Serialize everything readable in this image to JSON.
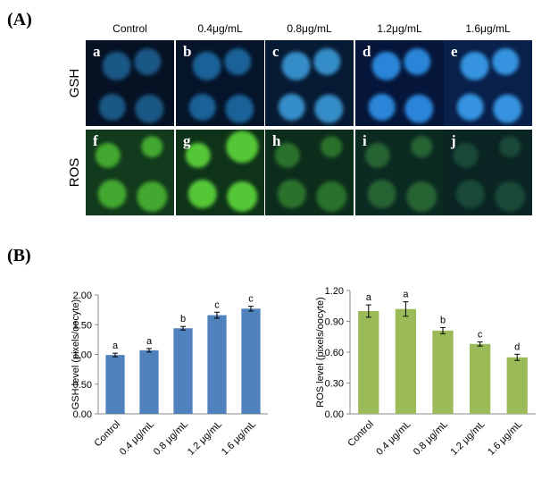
{
  "panel_a": {
    "label": "(A)",
    "columns": [
      "Control",
      "0.4μg/mL",
      "0.8μg/mL",
      "1.2μg/mL",
      "1.6μg/mL"
    ],
    "rows": [
      {
        "label": "GSH",
        "letters": [
          "a",
          "b",
          "c",
          "d",
          "e"
        ]
      },
      {
        "label": "ROS",
        "letters": [
          "f",
          "g",
          "h",
          "i",
          "j"
        ]
      }
    ]
  },
  "panel_b_label": "(B)",
  "chart_data": [
    {
      "type": "bar",
      "y_label": "GSH level (pixels/oocyte)",
      "categories": [
        "Control",
        "0.4 μg/mL",
        "0.8 μg/mL",
        "1.2 μg/mL",
        "1.6 μg/mL"
      ],
      "values": [
        0.99,
        1.07,
        1.44,
        1.66,
        1.77
      ],
      "errors": [
        0.03,
        0.03,
        0.03,
        0.05,
        0.04
      ],
      "annotations": [
        "a",
        "a",
        "b",
        "c",
        "c"
      ],
      "color": "#4f81bd",
      "ylim": [
        0,
        2
      ],
      "yticks": [
        {
          "value": 0,
          "label": "0.00"
        },
        {
          "value": 0.5,
          "label": "0.50"
        },
        {
          "value": 1,
          "label": "1.00"
        },
        {
          "value": 1.5,
          "label": "1.50"
        },
        {
          "value": 2,
          "label": "2.00"
        }
      ]
    },
    {
      "type": "bar",
      "y_label": "ROS level (pixels/oocyte)",
      "categories": [
        "Control",
        "0.4 μg/mL",
        "0.8 μg/mL",
        "1.2 μg/mL",
        "1.6 μg/mL"
      ],
      "values": [
        1.0,
        1.02,
        0.81,
        0.68,
        0.55
      ],
      "errors": [
        0.06,
        0.07,
        0.03,
        0.02,
        0.03
      ],
      "annotations": [
        "a",
        "a",
        "b",
        "c",
        "d"
      ],
      "color": "#9bbb59",
      "ylim": [
        0,
        1.2
      ],
      "yticks": [
        {
          "value": 0,
          "label": "0.00"
        },
        {
          "value": 0.3,
          "label": "0.30"
        },
        {
          "value": 0.6,
          "label": "0.60"
        },
        {
          "value": 0.9,
          "label": "0.90"
        },
        {
          "value": 1.2,
          "label": "1.20"
        }
      ]
    }
  ]
}
